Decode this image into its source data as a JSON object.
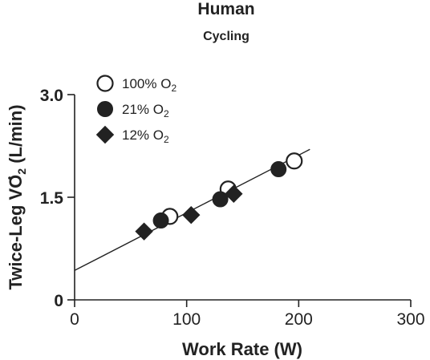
{
  "chart_data": {
    "type": "scatter",
    "title": "Human",
    "subtitle": "Cycling",
    "xlabel": "Work Rate (W)",
    "ylabel": {
      "prefix": "Twice-Leg V",
      "main": "O",
      "sub": "2",
      "suffix": " (L/min)"
    },
    "xlim": [
      0,
      300
    ],
    "ylim": [
      0,
      3.0
    ],
    "x_ticks": [
      0,
      100,
      200,
      300
    ],
    "x_tick_labels": [
      "0",
      "100",
      "200",
      "300"
    ],
    "y_ticks": [
      0,
      1.5,
      3.0
    ],
    "y_tick_labels": [
      "0",
      "1.5",
      "3.0"
    ],
    "grid": false,
    "legend_position": "top-left",
    "series": [
      {
        "name": "100% O2",
        "label_main": "100% O",
        "label_sub": "2",
        "marker": "open-circle",
        "x": [
          85,
          137,
          196
        ],
        "y": [
          1.22,
          1.62,
          2.03
        ]
      },
      {
        "name": "21% O2",
        "label_main": "21% O",
        "label_sub": "2",
        "marker": "filled-circle",
        "x": [
          77,
          130,
          182
        ],
        "y": [
          1.16,
          1.47,
          1.91
        ]
      },
      {
        "name": "12% O2",
        "label_main": "12% O",
        "label_sub": "2",
        "marker": "filled-diamond",
        "x": [
          62,
          104,
          142
        ],
        "y": [
          1.0,
          1.24,
          1.55
        ]
      }
    ],
    "fit_line": {
      "x": [
        0,
        210
      ],
      "y": [
        0.43,
        2.2
      ]
    },
    "colors": {
      "ink": "#222222",
      "background": "#ffffff"
    }
  }
}
